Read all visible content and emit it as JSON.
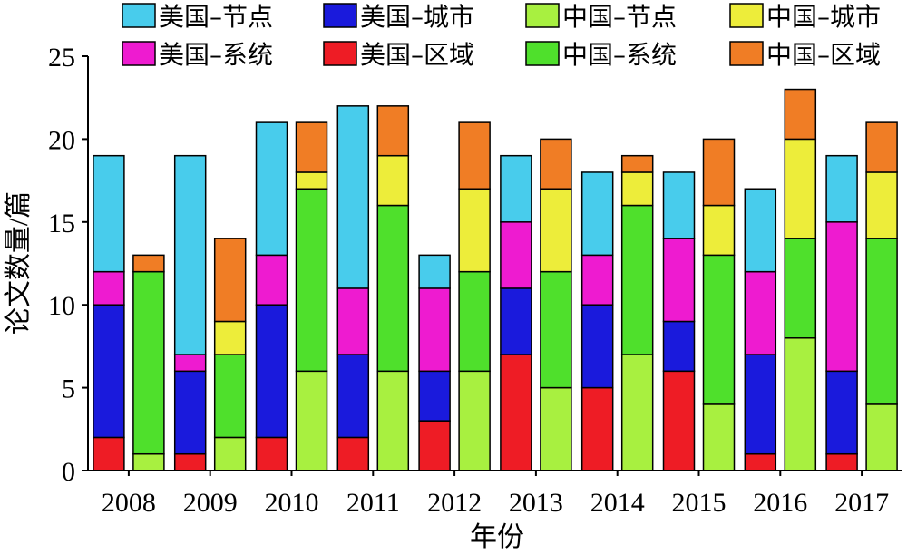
{
  "chart_data": {
    "type": "bar",
    "stacked": true,
    "grouped": true,
    "categories": [
      "2008",
      "2009",
      "2010",
      "2011",
      "2012",
      "2013",
      "2014",
      "2015",
      "2016",
      "2017"
    ],
    "xlabel": "年份",
    "ylabel": "论文数量/篇",
    "ylim": [
      0,
      25
    ],
    "yticks": [
      "0",
      "5",
      "10",
      "15",
      "20",
      "25"
    ],
    "grid": false,
    "legend_position": "top",
    "groups": [
      {
        "name": "美国",
        "series": [
          {
            "name": "美国–区域",
            "color": "#ee1c25",
            "values": [
              2,
              1,
              2,
              2,
              3,
              7,
              5,
              6,
              1,
              1
            ]
          },
          {
            "name": "美国–城市",
            "color": "#1a1adc",
            "values": [
              8,
              5,
              8,
              5,
              3,
              4,
              5,
              3,
              6,
              5
            ]
          },
          {
            "name": "美国–系统",
            "color": "#ee1bd0",
            "values": [
              2,
              1,
              3,
              4,
              5,
              4,
              3,
              5,
              5,
              9
            ]
          },
          {
            "name": "美国–节点",
            "color": "#48ccec",
            "values": [
              7,
              12,
              8,
              11,
              2,
              4,
              5,
              4,
              5,
              4
            ]
          }
        ]
      },
      {
        "name": "中国",
        "series": [
          {
            "name": "中国–节点",
            "color": "#a8f040",
            "values": [
              1,
              2,
              6,
              6,
              6,
              5,
              7,
              4,
              8,
              4
            ]
          },
          {
            "name": "中国–系统",
            "color": "#4fe02c",
            "values": [
              11,
              5,
              11,
              10,
              6,
              7,
              9,
              9,
              6,
              10
            ]
          },
          {
            "name": "中国–城市",
            "color": "#eded3a",
            "values": [
              0,
              2,
              1,
              3,
              5,
              5,
              2,
              3,
              6,
              4
            ]
          },
          {
            "name": "中国–区域",
            "color": "#f07d25",
            "values": [
              1,
              5,
              3,
              3,
              4,
              3,
              1,
              4,
              3,
              3
            ]
          }
        ]
      }
    ],
    "legend": [
      {
        "label": "美国–节点",
        "color": "#48ccec"
      },
      {
        "label": "美国–城市",
        "color": "#1a1adc"
      },
      {
        "label": "中国–节点",
        "color": "#a8f040"
      },
      {
        "label": "中国–城市",
        "color": "#eded3a"
      },
      {
        "label": "美国–系统",
        "color": "#ee1bd0"
      },
      {
        "label": "美国–区域",
        "color": "#ee1c25"
      },
      {
        "label": "中国–系统",
        "color": "#4fe02c"
      },
      {
        "label": "中国–区域",
        "color": "#f07d25"
      }
    ]
  }
}
